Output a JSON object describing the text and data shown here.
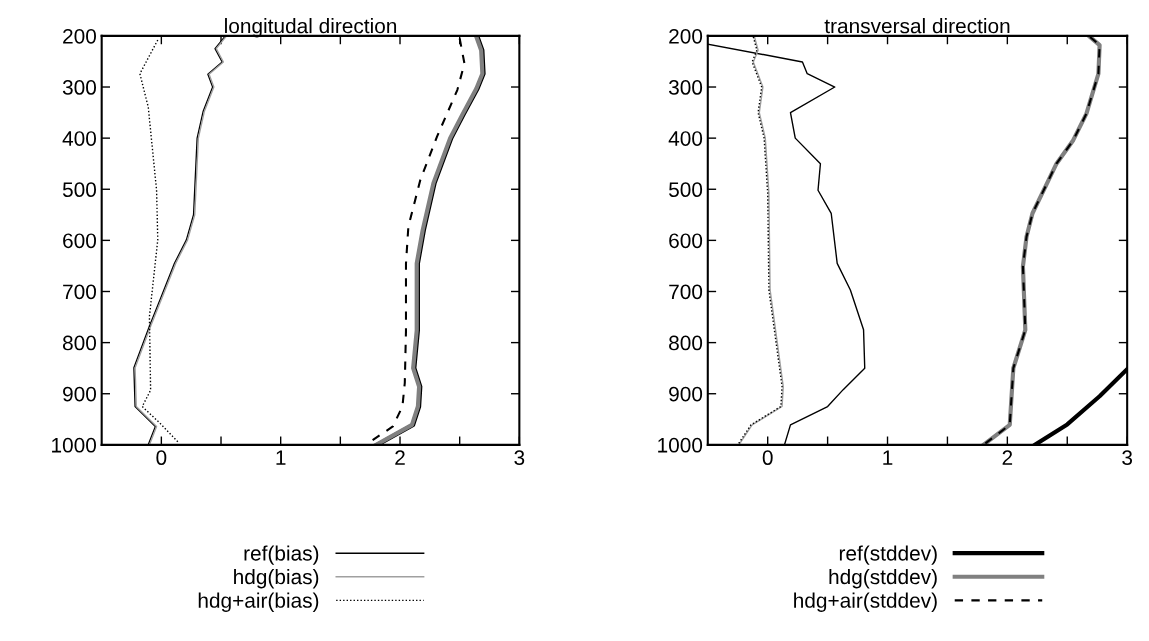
{
  "chart_data": [
    {
      "type": "line",
      "title": "longitudal direction",
      "xlim": [
        -0.5,
        3
      ],
      "ylim": [
        1000,
        200
      ],
      "xticks": [
        0,
        {
          "value": 0.5,
          "label": null
        },
        1,
        {
          "value": 1.5,
          "label": null
        },
        2,
        {
          "value": 2.5,
          "label": null
        },
        3
      ],
      "yticks": [
        200,
        300,
        400,
        500,
        600,
        700,
        800,
        900,
        1000
      ],
      "grid": false,
      "legend": "bottom",
      "marker": "none",
      "series": [
        {
          "name": "ref(bias)",
          "color": "#000000",
          "line_style": "solid",
          "x": [
            0.53,
            0.45,
            0.51,
            0.39,
            0.43,
            0.35,
            0.3,
            0.27,
            0.21,
            0.11,
            0.0,
            -0.1,
            -0.23,
            -0.22,
            -0.05,
            -0.11
          ],
          "values": [
            202,
            225,
            251,
            275,
            300,
            348,
            400,
            550,
            599,
            645,
            710,
            768,
            849,
            925,
            964,
            1000
          ]
        },
        {
          "name": "hdg(bias)",
          "color": "#a0a0a0",
          "line_style": "solid",
          "x": [
            0.54,
            0.46,
            0.52,
            0.4,
            0.44,
            0.36,
            0.31,
            0.28,
            0.22,
            0.12,
            0.01,
            -0.09,
            -0.22,
            -0.21,
            -0.04,
            -0.1
          ],
          "values": [
            202,
            225,
            251,
            275,
            300,
            348,
            400,
            550,
            599,
            645,
            710,
            768,
            849,
            925,
            964,
            1000
          ]
        },
        {
          "name": "hdg+air(bias)",
          "color": "#000000",
          "line_style": "dotted",
          "x": [
            -0.03,
            -0.18,
            -0.11,
            -0.04,
            -0.03,
            -0.1,
            -0.09,
            -0.16,
            -0.01,
            0.15
          ],
          "values": [
            208,
            274,
            339,
            502,
            599,
            749,
            893,
            925,
            958,
            997
          ]
        },
        {
          "color": "#000000",
          "line_style": "solid",
          "x": [
            2.65,
            2.69,
            2.7,
            2.65,
            2.53,
            2.43,
            2.29,
            2.2,
            2.15,
            2.15,
            2.12,
            2.17,
            2.16,
            2.11,
            1.81
          ],
          "values": [
            202,
            228,
            274,
            303,
            355,
            400,
            488,
            580,
            645,
            776,
            850,
            886,
            925,
            961,
            1000
          ]
        },
        {
          "color": "#808080",
          "line_style": "solid",
          "x": [
            2.64,
            2.68,
            2.69,
            2.64,
            2.52,
            2.42,
            2.28,
            2.19,
            2.14,
            2.14,
            2.11,
            2.16,
            2.15,
            2.1,
            1.8
          ],
          "values": [
            202,
            228,
            274,
            303,
            355,
            400,
            488,
            580,
            645,
            776,
            850,
            886,
            925,
            961,
            1000
          ]
        },
        {
          "color": "#000000",
          "line_style": "dashed",
          "x": [
            2.5,
            2.54,
            2.48,
            2.31,
            2.17,
            2.07,
            2.05,
            2.05,
            2.04,
            2.02,
            1.94,
            1.73
          ],
          "values": [
            205,
            254,
            306,
            397,
            482,
            573,
            645,
            776,
            879,
            925,
            964,
            997
          ]
        }
      ]
    },
    {
      "type": "line",
      "title": "transversal direction",
      "xlim": [
        -0.5,
        3
      ],
      "ylim": [
        1000,
        200
      ],
      "xticks": [
        0,
        {
          "value": 0.5,
          "label": null
        },
        1,
        {
          "value": 1.5,
          "label": null
        },
        2,
        {
          "value": 2.5,
          "label": null
        },
        3
      ],
      "yticks": [
        200,
        300,
        400,
        500,
        600,
        700,
        800,
        900,
        1000
      ],
      "grid": false,
      "legend": "bottom",
      "marker": "none",
      "series": [
        {
          "color": "#000000",
          "line_style": "solid",
          "x": [
            -0.5,
            0.29,
            0.33,
            0.56,
            0.19,
            0.23,
            0.44,
            0.42,
            0.53,
            0.58,
            0.69,
            0.8,
            0.81,
            0.63,
            0.5,
            0.19,
            0.14
          ],
          "values": [
            216,
            251,
            274,
            300,
            350,
            400,
            450,
            502,
            547,
            645,
            697,
            775,
            850,
            892,
            925,
            961,
            1000
          ]
        },
        {
          "color": "#a0a0a0",
          "line_style": "solid",
          "x": [
            -0.11,
            -0.08,
            -0.12,
            -0.04,
            -0.07,
            -0.02,
            0.01,
            0.02,
            0.13,
            0.12,
            -0.13,
            -0.24
          ],
          "values": [
            202,
            228,
            251,
            300,
            350,
            400,
            508,
            697,
            886,
            925,
            961,
            1000
          ]
        },
        {
          "color": "#000000",
          "line_style": "dotted",
          "x": [
            -0.12,
            -0.09,
            -0.13,
            -0.05,
            -0.08,
            -0.03,
            0.0,
            0.01,
            0.12,
            0.11,
            -0.14,
            -0.25
          ],
          "values": [
            202,
            228,
            251,
            300,
            350,
            400,
            508,
            697,
            886,
            925,
            961,
            1000
          ]
        },
        {
          "name": "ref(stddev)",
          "color": "#000000",
          "line_style": "solid",
          "x": [
            2.23,
            2.5,
            2.77,
            3.0
          ],
          "values": [
            1000,
            960,
            905,
            852
          ]
        },
        {
          "name": "hdg(stddev)",
          "color": "#808080",
          "line_style": "solid",
          "x": [
            2.69,
            2.77,
            2.76,
            2.66,
            2.55,
            2.41,
            2.33,
            2.21,
            2.16,
            2.13,
            2.15,
            2.05,
            2.02,
            1.8
          ],
          "values": [
            202,
            218,
            274,
            352,
            404,
            450,
            489,
            547,
            593,
            651,
            775,
            850,
            961,
            1000
          ]
        },
        {
          "name": "hdg+air(stddev)",
          "color": "#000000",
          "line_style": "dashed",
          "x": [
            2.69,
            2.77,
            2.76,
            2.66,
            2.55,
            2.41,
            2.33,
            2.21,
            2.16,
            2.13,
            2.15,
            2.05,
            2.02,
            1.8
          ],
          "values": [
            202,
            218,
            274,
            352,
            404,
            450,
            489,
            547,
            593,
            651,
            775,
            850,
            961,
            1000
          ]
        }
      ]
    }
  ]
}
